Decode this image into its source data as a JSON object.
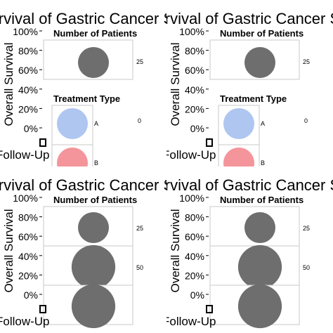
{
  "chart_data": [
    {
      "type": "scatter",
      "title": "Overall Survival of Gastric Cancer Study Arms",
      "xlabel": "Follow-Up",
      "ylabel": "Overall Survival",
      "yticks": [
        "0%",
        "20%",
        "40%",
        "60%",
        "80%",
        "100%"
      ],
      "legend": {
        "size_title": "Number of Patients",
        "size_entries": [
          {
            "label": "25",
            "value": 25
          }
        ],
        "color_title": "Treatment Type",
        "color_entries": [
          {
            "label": "A",
            "color": "#aec6f0"
          },
          {
            "label": "B",
            "color": "#f4959b"
          }
        ],
        "stray_label": "0"
      }
    },
    {
      "type": "scatter",
      "title": "Overall Survival of Gastric Cancer Study Arms",
      "xlabel": "Follow-Up",
      "ylabel": "Overall Survival",
      "yticks": [
        "0%",
        "20%",
        "40%",
        "60%",
        "80%",
        "100%"
      ],
      "legend": {
        "size_title": "Number of Patients",
        "size_entries": [
          {
            "label": "25",
            "value": 25
          }
        ],
        "color_title": "Treatment Type",
        "color_entries": [
          {
            "label": "A",
            "color": "#aec6f0"
          },
          {
            "label": "B",
            "color": "#f4959b"
          }
        ],
        "stray_label": "0"
      }
    },
    {
      "type": "scatter",
      "title": "Overall Survival of Gastric Cancer Study Arms",
      "xlabel": "Follow-Up",
      "ylabel": "Overall Survival",
      "yticks": [
        "0%",
        "20%",
        "40%",
        "60%",
        "80%",
        "100%"
      ],
      "legend": {
        "size_title": "Number of Patients",
        "size_entries": [
          {
            "label": "25",
            "value": 25
          },
          {
            "label": "50",
            "value": 50
          },
          {
            "label": "",
            "value": 50
          }
        ]
      }
    },
    {
      "type": "scatter",
      "title": "Overall Survival of Gastric Cancer Study Arms",
      "xlabel": "Follow-Up",
      "ylabel": "Overall Survival",
      "yticks": [
        "0%",
        "20%",
        "40%",
        "60%",
        "80%",
        "100%"
      ],
      "legend": {
        "size_title": "Number of Patients",
        "size_entries": [
          {
            "label": "25",
            "value": 25
          },
          {
            "label": "50",
            "value": 50
          },
          {
            "label": "",
            "value": 50
          }
        ]
      }
    }
  ],
  "colors": {
    "size_marker": "#6e6e6e",
    "key_border": "#c8c8c8",
    "text": "#000000"
  }
}
